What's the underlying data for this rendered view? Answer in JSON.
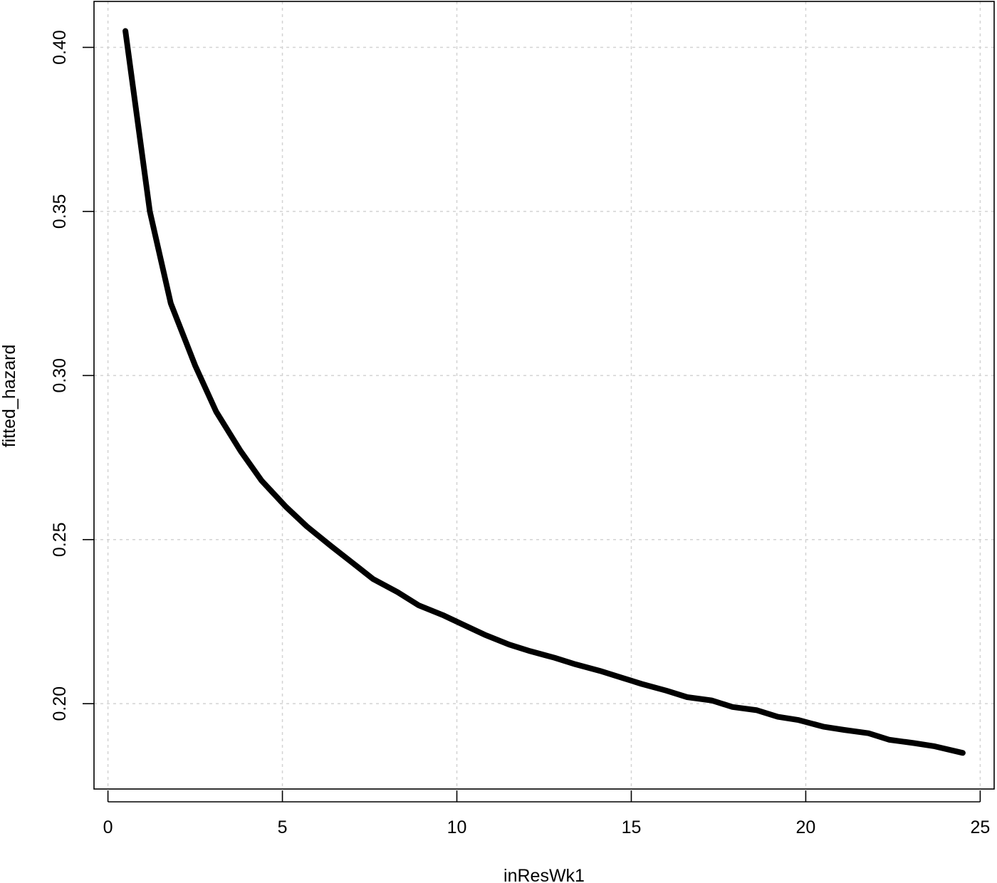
{
  "chart_data": {
    "type": "line",
    "xlabel": "inResWk1",
    "ylabel": "fitted_hazard",
    "xlim": [
      -0.4,
      25.4
    ],
    "ylim": [
      0.174,
      0.414
    ],
    "x_ticks": [
      0,
      5,
      10,
      15,
      20,
      25
    ],
    "x_tick_labels": [
      "0",
      "5",
      "10",
      "15",
      "20",
      "25"
    ],
    "y_ticks": [
      0.2,
      0.25,
      0.3,
      0.35,
      0.4
    ],
    "y_tick_labels": [
      "0.20",
      "0.25",
      "0.30",
      "0.35",
      "0.40"
    ],
    "grid": true,
    "series": [
      {
        "color": "#000000",
        "x": [
          0.5,
          1.2,
          1.8,
          2.5,
          3.1,
          3.8,
          4.4,
          5.1,
          5.7,
          6.4,
          7.0,
          7.6,
          8.3,
          8.9,
          9.6,
          10.2,
          10.8,
          11.5,
          12.1,
          12.8,
          13.4,
          14.1,
          14.7,
          15.3,
          16.0,
          16.6,
          17.3,
          17.9,
          18.6,
          19.2,
          19.8,
          20.5,
          21.1,
          21.8,
          22.4,
          23.1,
          23.7,
          24.5
        ],
        "y": [
          0.405,
          0.35,
          0.322,
          0.303,
          0.289,
          0.277,
          0.268,
          0.26,
          0.254,
          0.248,
          0.243,
          0.238,
          0.234,
          0.23,
          0.227,
          0.224,
          0.221,
          0.218,
          0.216,
          0.214,
          0.212,
          0.21,
          0.208,
          0.206,
          0.204,
          0.202,
          0.201,
          0.199,
          0.198,
          0.196,
          0.195,
          0.193,
          0.192,
          0.191,
          0.189,
          0.188,
          0.187,
          0.185
        ]
      }
    ]
  }
}
